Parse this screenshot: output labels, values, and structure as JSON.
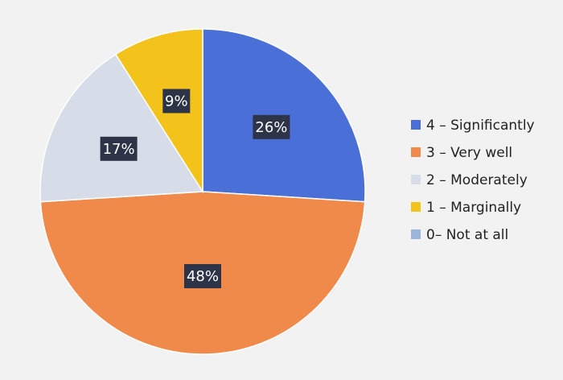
{
  "chart_data": {
    "type": "pie",
    "categories": [
      "4 – Significantly",
      "3 – Very well",
      "2 – Moderately",
      "1 – Marginally",
      "0– Not at all"
    ],
    "values": [
      26,
      48,
      17,
      9,
      0
    ],
    "data_labels": [
      "26%",
      "48%",
      "17%",
      "9%",
      ""
    ],
    "colors": [
      "#4a6fd6",
      "#f08a4b",
      "#d6dde8",
      "#f3c21b",
      "#9bb5db"
    ],
    "legend": {
      "placement": "right",
      "entries": [
        "4 – Significantly",
        "3 – Very well",
        "2 – Moderately",
        "1 – Marginally",
        "0– Not at all"
      ]
    },
    "start_angle_deg": 0,
    "direction": "clockwise"
  }
}
